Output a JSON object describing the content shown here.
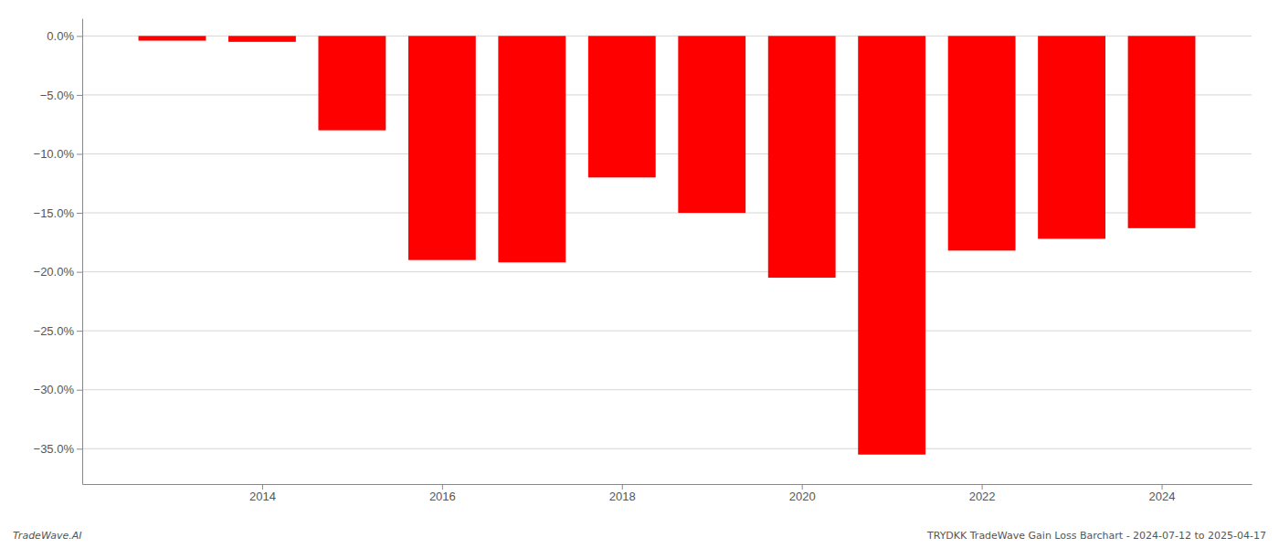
{
  "chart_data": {
    "type": "bar",
    "x": [
      2013,
      2014,
      2015,
      2016,
      2017,
      2018,
      2019,
      2020,
      2021,
      2022,
      2023,
      2024
    ],
    "values": [
      -0.4,
      -0.5,
      -8.0,
      -19.0,
      -19.2,
      -12.0,
      -15.0,
      -20.5,
      -35.5,
      -18.2,
      -17.2,
      -16.3
    ],
    "color": "#FF0000",
    "xlim": [
      2012,
      2025
    ],
    "xticks": [
      2014,
      2016,
      2018,
      2020,
      2022,
      2024
    ],
    "ylim": [
      -38,
      1.5
    ],
    "yticks": [
      {
        "value": 0.0,
        "label": "0.0%"
      },
      {
        "value": -5.0,
        "label": "−5.0%"
      },
      {
        "value": -10.0,
        "label": "−10.0%"
      },
      {
        "value": -15.0,
        "label": "−15.0%"
      },
      {
        "value": -20.0,
        "label": "−20.0%"
      },
      {
        "value": -25.0,
        "label": "−25.0%"
      },
      {
        "value": -30.0,
        "label": "−30.0%"
      },
      {
        "value": -35.0,
        "label": "−35.0%"
      }
    ],
    "grid": true,
    "annotations": [
      "TradeWave.AI",
      "TRYDKK TradeWave Gain Loss Barchart - 2024-07-12 to 2025-04-17"
    ]
  }
}
